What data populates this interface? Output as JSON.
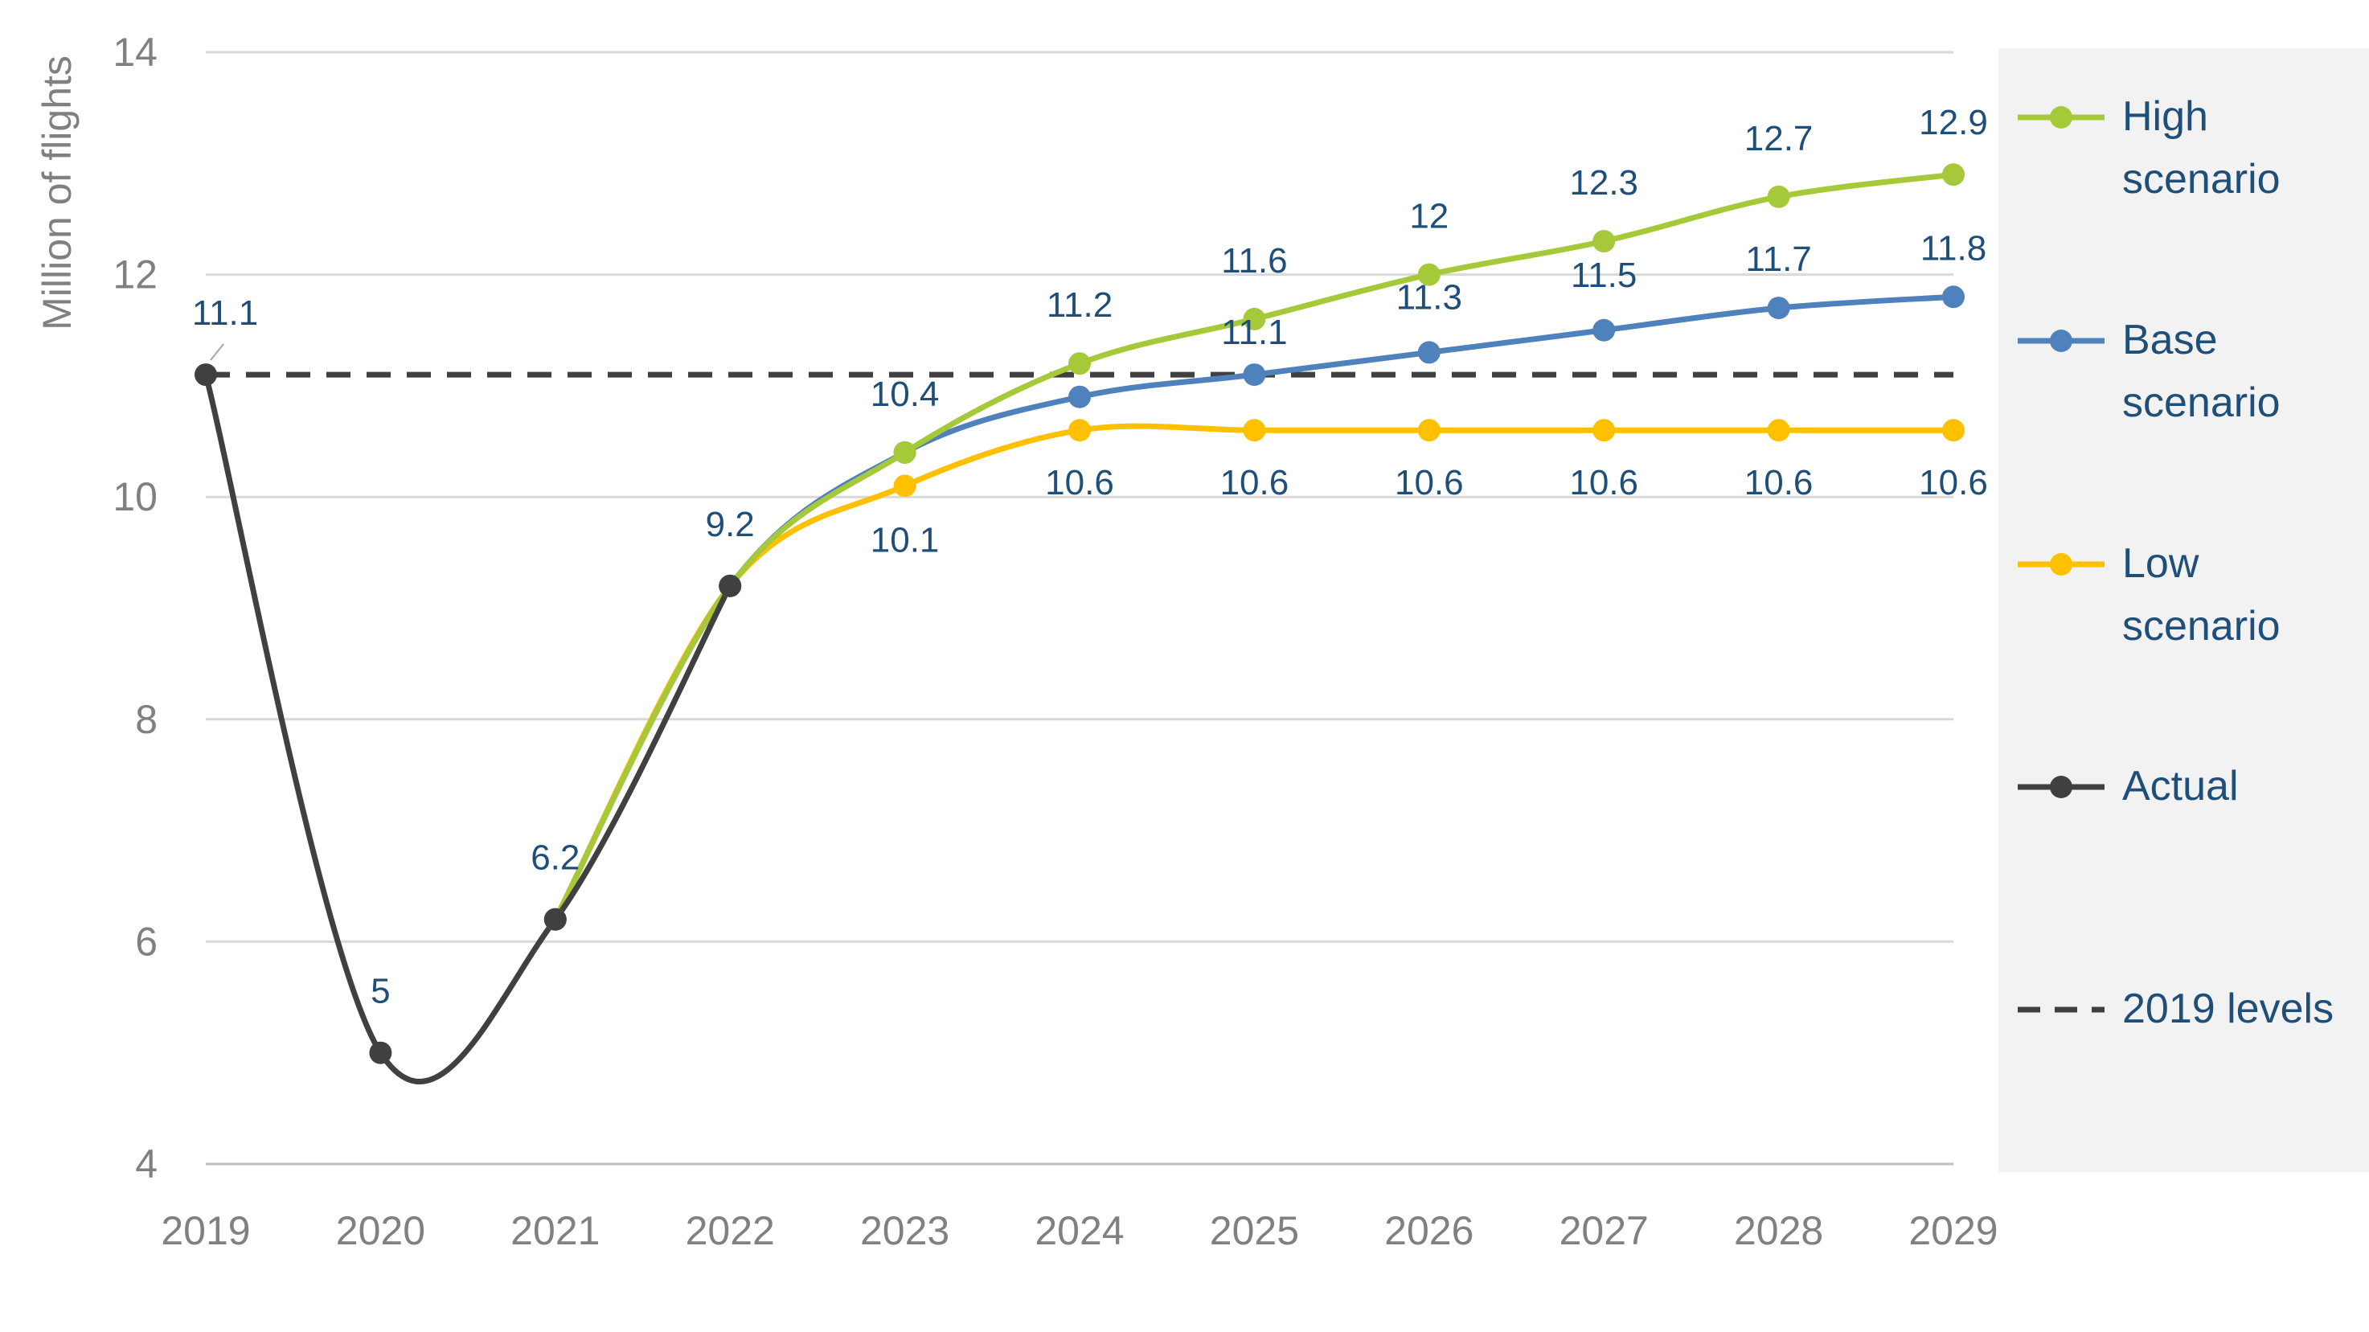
{
  "chart_data": {
    "type": "line",
    "title": "",
    "xlabel": "",
    "ylabel": "Million of flights",
    "ylim": [
      4,
      14
    ],
    "yticks": [
      4,
      6,
      8,
      10,
      12,
      14
    ],
    "grid": true,
    "legend_position": "right",
    "categories": [
      "2019",
      "2020",
      "2021",
      "2022",
      "2023",
      "2024",
      "2025",
      "2026",
      "2027",
      "2028",
      "2029"
    ],
    "series": [
      {
        "name": "High scenario",
        "legend_lines": [
          "High",
          "scenario"
        ],
        "color": "#a6c93a",
        "style": "solid",
        "x": [
          "2021",
          "2022",
          "2023",
          "2024",
          "2025",
          "2026",
          "2027",
          "2028",
          "2029"
        ],
        "values": [
          6.2,
          9.2,
          10.4,
          11.2,
          11.6,
          12.0,
          12.3,
          12.7,
          12.9
        ],
        "labels": [
          "",
          "",
          "",
          "11.2",
          "11.6",
          "12",
          "12.3",
          "12.7",
          "12.9"
        ]
      },
      {
        "name": "Base scenario",
        "legend_lines": [
          "Base",
          "scenario"
        ],
        "color": "#4f81bd",
        "style": "solid",
        "x": [
          "2021",
          "2022",
          "2023",
          "2024",
          "2025",
          "2026",
          "2027",
          "2028",
          "2029"
        ],
        "values": [
          6.2,
          9.2,
          10.4,
          10.9,
          11.1,
          11.3,
          11.5,
          11.7,
          11.8
        ],
        "labels": [
          "",
          "",
          "10.4",
          "",
          "11.1",
          "11.3",
          "11.5",
          "11.7",
          "11.8"
        ]
      },
      {
        "name": "Low scenario",
        "legend_lines": [
          "Low",
          "scenario"
        ],
        "color": "#ffc000",
        "style": "solid",
        "x": [
          "2021",
          "2022",
          "2023",
          "2024",
          "2025",
          "2026",
          "2027",
          "2028",
          "2029"
        ],
        "values": [
          6.2,
          9.2,
          10.1,
          10.6,
          10.6,
          10.6,
          10.6,
          10.6,
          10.6
        ],
        "labels": [
          "",
          "",
          "10.1",
          "10.6",
          "10.6",
          "10.6",
          "10.6",
          "10.6",
          "10.6"
        ]
      },
      {
        "name": "Actual",
        "legend_lines": [
          "Actual"
        ],
        "color": "#404040",
        "style": "solid",
        "x": [
          "2019",
          "2020",
          "2021",
          "2022"
        ],
        "values": [
          11.1,
          5.0,
          6.2,
          9.2
        ],
        "labels": [
          "11.1",
          "5",
          "6.2",
          "9.2"
        ]
      },
      {
        "name": "2019 levels",
        "legend_lines": [
          "2019 levels"
        ],
        "color": "#404040",
        "style": "dashed",
        "x": [
          "2019",
          "2029"
        ],
        "values": [
          11.1,
          11.1
        ],
        "labels": [
          "",
          ""
        ]
      }
    ]
  }
}
